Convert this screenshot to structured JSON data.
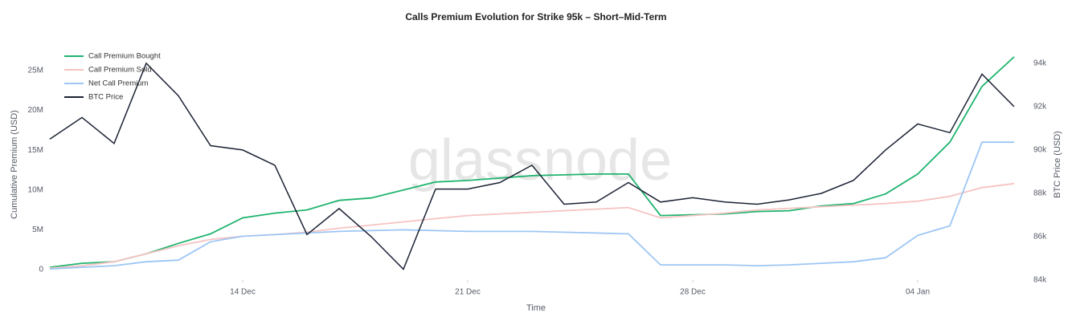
{
  "chart_data": {
    "type": "line",
    "title": "Calls Premium Evolution for Strike 95k – Short–Mid-Term",
    "watermark": "glassnode",
    "x_label": "Time",
    "y_label": "Cumulative Premium (USD)",
    "y2_label": "BTC Price (USD)",
    "x": [
      "08 Dec",
      "09 Dec",
      "10 Dec",
      "11 Dec",
      "12 Dec",
      "13 Dec",
      "14 Dec",
      "15 Dec",
      "16 Dec",
      "17 Dec",
      "18 Dec",
      "19 Dec",
      "20 Dec",
      "21 Dec",
      "22 Dec",
      "23 Dec",
      "24 Dec",
      "25 Dec",
      "26 Dec",
      "27 Dec",
      "28 Dec",
      "29 Dec",
      "30 Dec",
      "31 Dec",
      "01 Jan",
      "02 Jan",
      "03 Jan",
      "04 Jan",
      "05 Jan",
      "06 Jan",
      "07 Jan"
    ],
    "xticks": [
      "14 Dec",
      "21 Dec",
      "28 Dec",
      "04 Jan"
    ],
    "ylim": [
      -1300000,
      27800000
    ],
    "yticks": [
      0,
      {
        "value": 5000000,
        "label": "5M"
      },
      {
        "value": 10000000,
        "label": "10M"
      },
      {
        "value": 15000000,
        "label": "15M"
      },
      {
        "value": 20000000,
        "label": "20M"
      },
      {
        "value": 25000000,
        "label": "25M"
      }
    ],
    "y2lim": [
      84000,
      94700
    ],
    "y2ticks": [
      {
        "value": 84000,
        "label": "84k"
      },
      {
        "value": 86000,
        "label": "86k"
      },
      {
        "value": 88000,
        "label": "88k"
      },
      {
        "value": 90000,
        "label": "90k"
      },
      {
        "value": 92000,
        "label": "92k"
      },
      {
        "value": 94000,
        "label": "94k"
      }
    ],
    "legend": "top-left",
    "series": [
      {
        "name": "Call Premium Bought",
        "color": "#1fb36e",
        "values": [
          300000,
          800000,
          1000000,
          2000000,
          3300000,
          4500000,
          6500000,
          7100000,
          7500000,
          8700000,
          9000000,
          10000000,
          11000000,
          11200000,
          11500000,
          11800000,
          11900000,
          12000000,
          12000000,
          6800000,
          6900000,
          7000000,
          7300000,
          7400000,
          8000000,
          8300000,
          9500000,
          12000000,
          16000000,
          23000000,
          26700000
        ]
      },
      {
        "name": "Call Premium Sold",
        "color": "#f6c3c3",
        "values": [
          200000,
          500000,
          1000000,
          2000000,
          3000000,
          3800000,
          4200000,
          4400000,
          4700000,
          5200000,
          5600000,
          6000000,
          6400000,
          6800000,
          7000000,
          7200000,
          7400000,
          7600000,
          7800000,
          6500000,
          6800000,
          7100000,
          7500000,
          7700000,
          7900000,
          8100000,
          8300000,
          8600000,
          9200000,
          10300000,
          10800000
        ]
      },
      {
        "name": "Net Call Premium",
        "color": "#9dc6f4",
        "values": [
          100000,
          300000,
          500000,
          1000000,
          1200000,
          3500000,
          4200000,
          4400000,
          4600000,
          4800000,
          4900000,
          5000000,
          4900000,
          4800000,
          4800000,
          4800000,
          4700000,
          4600000,
          4500000,
          600000,
          600000,
          600000,
          500000,
          600000,
          800000,
          1000000,
          1500000,
          4300000,
          5500000,
          16000000,
          16000000
        ]
      },
      {
        "name": "BTC Price",
        "color": "#1b2233",
        "axis": "y2",
        "values": [
          90500,
          91500,
          90300,
          94000,
          92500,
          90200,
          90000,
          89300,
          86100,
          87300,
          86000,
          84500,
          88200,
          88200,
          88500,
          89300,
          87500,
          87600,
          88500,
          87600,
          87800,
          87600,
          87500,
          87700,
          88000,
          88600,
          90000,
          91200,
          90800,
          93500,
          92000
        ]
      }
    ]
  }
}
